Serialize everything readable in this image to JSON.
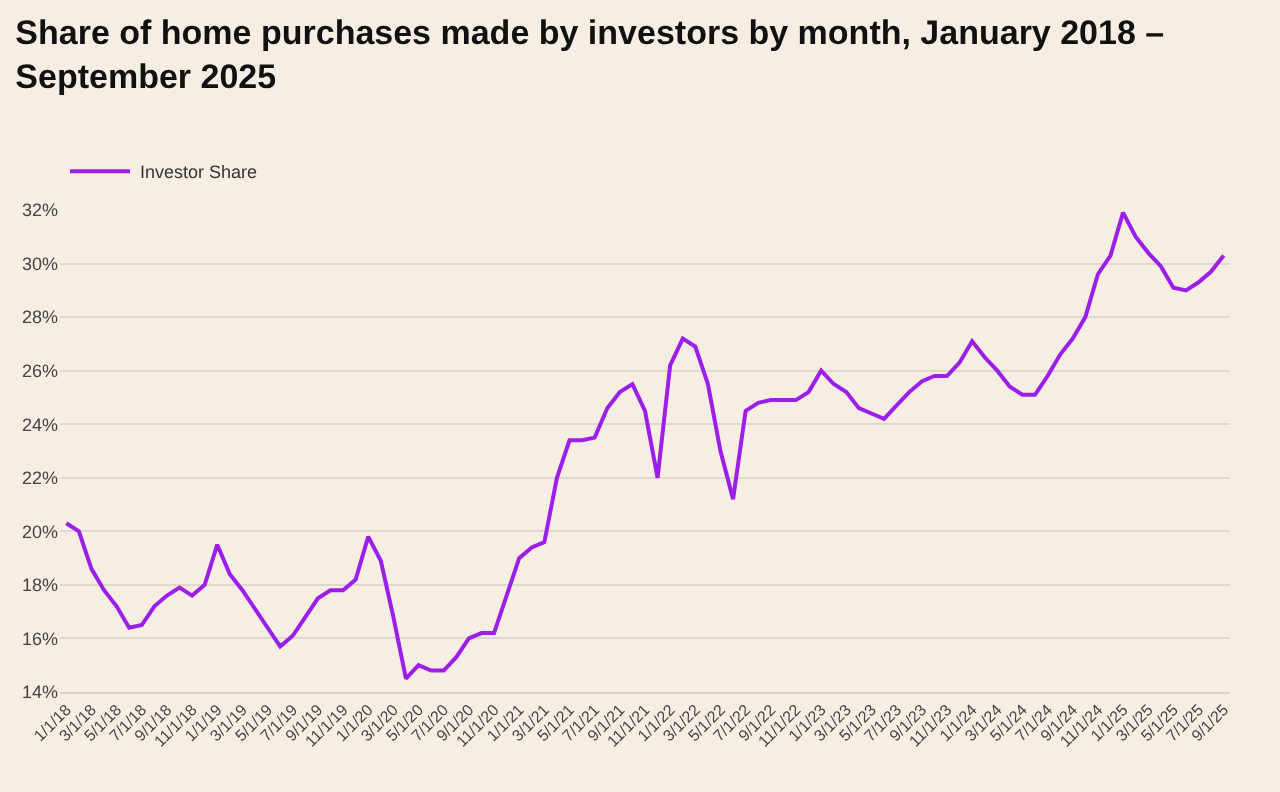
{
  "chart_data": {
    "type": "line",
    "title": "Share of home purchases made by investors by month, January 2018 – September 2025",
    "categories": [
      "1/1/18",
      null,
      "3/1/18",
      null,
      "5/1/18",
      null,
      "7/1/18",
      null,
      "9/1/18",
      null,
      "11/1/18",
      null,
      "1/1/19",
      null,
      "3/1/19",
      null,
      "5/1/19",
      null,
      "7/1/19",
      null,
      "9/1/19",
      null,
      "11/1/19",
      null,
      "1/1/20",
      null,
      "3/1/20",
      null,
      "5/1/20",
      null,
      "7/1/20",
      null,
      "9/1/20",
      null,
      "11/1/20",
      null,
      "1/1/21",
      null,
      "3/1/21",
      null,
      "5/1/21",
      null,
      "7/1/21",
      null,
      "9/1/21",
      null,
      "11/1/21",
      null,
      "1/1/22",
      null,
      "3/1/22",
      null,
      "5/1/22",
      null,
      "7/1/22",
      null,
      "9/1/22",
      null,
      "11/1/22",
      null,
      "1/1/23",
      null,
      "3/1/23",
      null,
      "5/1/23",
      null,
      "7/1/23",
      null,
      "9/1/23",
      null,
      "11/1/23",
      null,
      "1/1/24",
      null,
      "3/1/24",
      null,
      "5/1/24",
      null,
      "7/1/24",
      null,
      "9/1/24",
      null,
      "11/1/24",
      null,
      "1/1/25",
      null,
      "3/1/25",
      null,
      "5/1/25",
      null,
      "7/1/25",
      null,
      "9/1/25"
    ],
    "series": [
      {
        "name": "Investor Share",
        "color": "#9b1fe8",
        "values": [
          20.3,
          20.0,
          18.6,
          17.8,
          17.2,
          16.4,
          16.5,
          17.2,
          17.6,
          17.9,
          17.6,
          18.0,
          19.5,
          18.4,
          17.8,
          17.1,
          16.4,
          15.7,
          16.1,
          16.8,
          17.5,
          17.8,
          17.8,
          18.2,
          19.8,
          18.9,
          16.8,
          14.5,
          15.0,
          14.8,
          14.8,
          15.3,
          16.0,
          16.2,
          16.2,
          17.6,
          19.0,
          19.4,
          19.6,
          22.0,
          23.4,
          23.4,
          23.5,
          24.6,
          25.2,
          25.5,
          24.5,
          22.0,
          26.2,
          27.2,
          26.9,
          25.5,
          23.0,
          21.2,
          24.5,
          24.8,
          24.9,
          24.9,
          24.9,
          25.2,
          26.0,
          25.5,
          25.2,
          24.6,
          24.4,
          24.2,
          24.7,
          25.2,
          25.6,
          25.8,
          25.8,
          26.3,
          27.1,
          26.5,
          26.0,
          25.4,
          25.1,
          25.1,
          25.8,
          26.6,
          27.2,
          28.0,
          29.6,
          30.3,
          31.9,
          31.0,
          30.4,
          29.9,
          29.1,
          29.0,
          29.3,
          29.7,
          30.3
        ]
      }
    ],
    "ylim": [
      14,
      32
    ],
    "yticks": [
      {
        "value": 14,
        "label": "14%"
      },
      {
        "value": 16,
        "label": "16%"
      },
      {
        "value": 18,
        "label": "18%"
      },
      {
        "value": 20,
        "label": "20%"
      },
      {
        "value": 22,
        "label": "22%"
      },
      {
        "value": 24,
        "label": "24%"
      },
      {
        "value": 26,
        "label": "26%"
      },
      {
        "value": 28,
        "label": "28%"
      },
      {
        "value": 30,
        "label": "30%"
      },
      {
        "value": 32,
        "label": "32%"
      }
    ],
    "grid": "y",
    "legend": "top left",
    "marker": "none",
    "line_style": "solid"
  }
}
